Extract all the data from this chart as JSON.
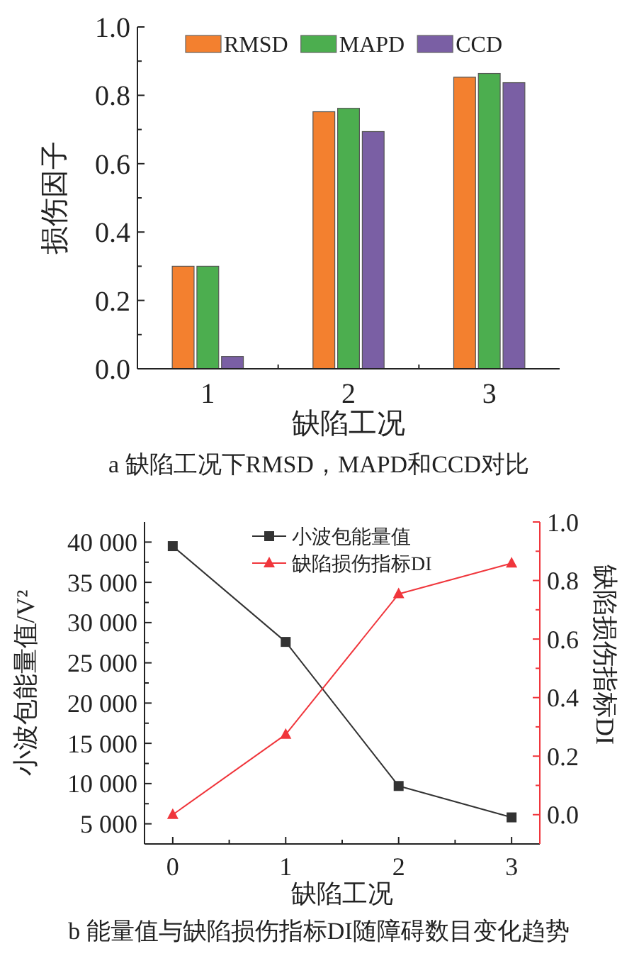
{
  "chart_data": [
    {
      "type": "bar",
      "categories": [
        "1",
        "2",
        "3"
      ],
      "xlabel": "缺陷工况",
      "ylabel": "损伤因子",
      "annotations": [
        "a 缺陷工况下RMSD，MAPD和CCD对比"
      ],
      "series": [
        {
          "name": "RMSD",
          "color": "#f3802f",
          "values": [
            0.3,
            0.752,
            0.853
          ]
        },
        {
          "name": "MAPD",
          "color": "#4cae4f",
          "values": [
            0.3,
            0.762,
            0.864
          ]
        },
        {
          "name": "CCD",
          "color": "#7a5fa4",
          "values": [
            0.036,
            0.694,
            0.837
          ]
        }
      ],
      "ylim": [
        0,
        1.0
      ],
      "yticks": [
        {
          "value": 0,
          "label": "0.0"
        },
        {
          "value": 0.1,
          "label": null
        },
        {
          "value": 0.2,
          "label": "0.2"
        },
        {
          "value": 0.3,
          "label": null
        },
        {
          "value": 0.4,
          "label": "0.4"
        },
        {
          "value": 0.5,
          "label": null
        },
        {
          "value": 0.6,
          "label": "0.6"
        },
        {
          "value": 0.7,
          "label": null
        },
        {
          "value": 0.8,
          "label": "0.8"
        },
        {
          "value": 0.9,
          "label": null
        },
        {
          "value": 1.0,
          "label": "1.0"
        }
      ],
      "legend": "top"
    },
    {
      "type": "line",
      "x": [
        0,
        1,
        2,
        3
      ],
      "xlabel": "缺陷工况",
      "ylabel": "小波包能量值/V²",
      "y2label": "缺陷损伤指标DI",
      "annotations": [
        "b 能量值与缺陷损伤指标DI随障碍数目变化趋势"
      ],
      "series": [
        {
          "name": "小波包能量值",
          "color": "#333333",
          "marker": "square",
          "values": [
            39500,
            27600,
            9700,
            5800
          ]
        },
        {
          "name": "缺陷损伤指标DI",
          "color": "#f0363c",
          "marker": "triangle",
          "axis": "y2",
          "values": [
            0.0,
            0.274,
            0.754,
            0.859
          ]
        }
      ],
      "xlim": [
        -0.25,
        3.25
      ],
      "xticks": [
        0,
        {
          "value": 0.5,
          "label": null
        },
        1,
        {
          "value": 1.5,
          "label": null
        },
        2,
        {
          "value": 2.5,
          "label": null
        },
        3
      ],
      "ylim": [
        2500,
        42500
      ],
      "yticks": [
        {
          "value": 5000,
          "label": "5 000"
        },
        {
          "value": 7500,
          "label": null
        },
        {
          "value": 10000,
          "label": "10 000"
        },
        {
          "value": 12500,
          "label": null
        },
        {
          "value": 15000,
          "label": "15 000"
        },
        {
          "value": 17500,
          "label": null
        },
        {
          "value": 20000,
          "label": "20 000"
        },
        {
          "value": 22500,
          "label": null
        },
        {
          "value": 25000,
          "label": "25 000"
        },
        {
          "value": 27500,
          "label": null
        },
        {
          "value": 30000,
          "label": "30 000"
        },
        {
          "value": 32500,
          "label": null
        },
        {
          "value": 35000,
          "label": "35 000"
        },
        {
          "value": 37500,
          "label": null
        },
        {
          "value": 40000,
          "label": "40 000"
        }
      ],
      "y2lim": [
        -0.1,
        1.0
      ],
      "y2ticks": [
        {
          "value": 0,
          "label": "0.0"
        },
        {
          "value": 0.1,
          "label": null
        },
        {
          "value": 0.2,
          "label": "0.2"
        },
        {
          "value": 0.3,
          "label": null
        },
        {
          "value": 0.4,
          "label": "0.4"
        },
        {
          "value": 0.5,
          "label": null
        },
        {
          "value": 0.6,
          "label": "0.6"
        },
        {
          "value": 0.7,
          "label": null
        },
        {
          "value": 0.8,
          "label": "0.8"
        },
        {
          "value": 0.9,
          "label": null
        },
        {
          "value": 1.0,
          "label": "1.0"
        }
      ],
      "legend": "top"
    }
  ]
}
